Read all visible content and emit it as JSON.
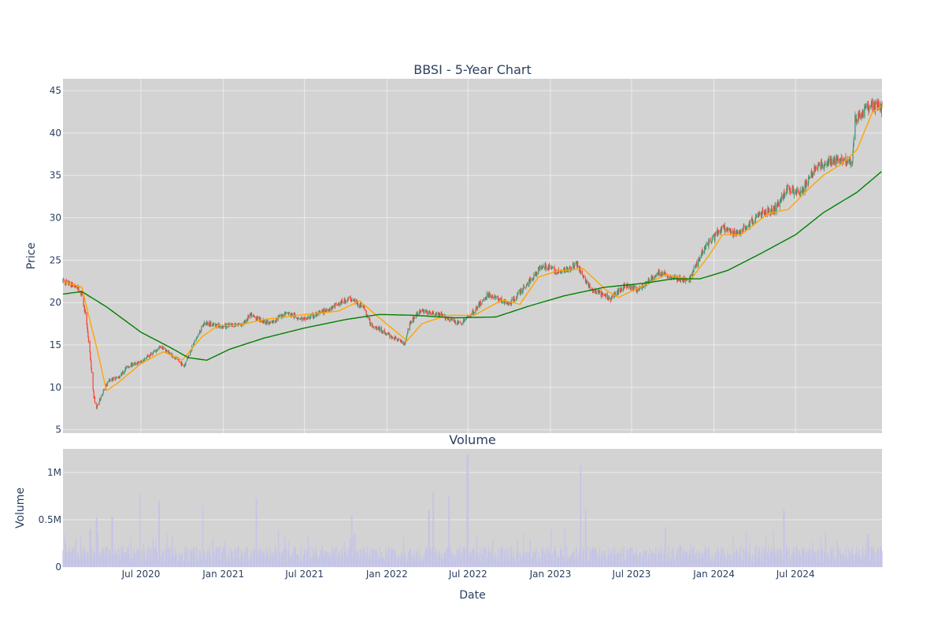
{
  "colors": {
    "plot_bg": "#d3d3d3",
    "grid": "#ebebeb",
    "up": "#3d9970",
    "down": "#ff4136",
    "ma_short": "#ffa500",
    "ma_long": "#008000",
    "volume": "#c4c4e8",
    "text": "#2a3f5f"
  },
  "chart_data": [
    {
      "type": "candlestick",
      "title": "BBSI - 5-Year Chart",
      "ylabel": "Price",
      "xlabel": "",
      "ylim": [
        4.6,
        46.4
      ],
      "yticks": [
        5,
        10,
        15,
        20,
        25,
        30,
        35,
        40,
        45
      ],
      "x_range": [
        "2020-01-09",
        "2025-01-10"
      ],
      "grid": true,
      "legend": "none",
      "series": [
        {
          "type": "candlestick",
          "anchors": [
            [
              "2020-01-09",
              22.5
            ],
            [
              "2020-02-10",
              21.8
            ],
            [
              "2020-02-20",
              21.0
            ],
            [
              "2020-03-01",
              18.0
            ],
            [
              "2020-03-10",
              13.5
            ],
            [
              "2020-03-18",
              8.8
            ],
            [
              "2020-03-24",
              7.6
            ],
            [
              "2020-04-05",
              9.2
            ],
            [
              "2020-04-20",
              10.8
            ],
            [
              "2020-05-15",
              11.3
            ],
            [
              "2020-06-01",
              12.5
            ],
            [
              "2020-07-01",
              13.0
            ],
            [
              "2020-08-15",
              14.8
            ],
            [
              "2020-09-15",
              13.5
            ],
            [
              "2020-10-05",
              12.5
            ],
            [
              "2020-10-25",
              15.0
            ],
            [
              "2020-11-20",
              17.6
            ],
            [
              "2021-01-01",
              17.2
            ],
            [
              "2021-02-15",
              17.5
            ],
            [
              "2021-03-01",
              18.5
            ],
            [
              "2021-04-15",
              17.5
            ],
            [
              "2021-05-20",
              18.8
            ],
            [
              "2021-07-01",
              18.0
            ],
            [
              "2021-08-15",
              19.0
            ],
            [
              "2021-10-10",
              20.5
            ],
            [
              "2021-11-10",
              19.5
            ],
            [
              "2021-11-25",
              17.5
            ],
            [
              "2022-01-10",
              16.0
            ],
            [
              "2022-02-10",
              15.2
            ],
            [
              "2022-02-20",
              17.5
            ],
            [
              "2022-03-15",
              19.0
            ],
            [
              "2022-05-01",
              18.5
            ],
            [
              "2022-06-15",
              17.5
            ],
            [
              "2022-07-15",
              19.0
            ],
            [
              "2022-08-15",
              21.0
            ],
            [
              "2022-10-01",
              19.8
            ],
            [
              "2022-11-15",
              22.5
            ],
            [
              "2022-12-15",
              24.5
            ],
            [
              "2023-01-20",
              23.5
            ],
            [
              "2023-03-01",
              24.5
            ],
            [
              "2023-04-01",
              21.5
            ],
            [
              "2023-05-15",
              20.5
            ],
            [
              "2023-06-15",
              22.0
            ],
            [
              "2023-07-15",
              21.5
            ],
            [
              "2023-09-01",
              23.5
            ],
            [
              "2023-10-15",
              22.8
            ],
            [
              "2023-11-05",
              22.5
            ],
            [
              "2023-12-10",
              26.5
            ],
            [
              "2024-01-20",
              28.8
            ],
            [
              "2024-02-15",
              28.0
            ],
            [
              "2024-03-15",
              29.0
            ],
            [
              "2024-04-15",
              30.5
            ],
            [
              "2024-05-15",
              31.0
            ],
            [
              "2024-06-15",
              33.5
            ],
            [
              "2024-07-15",
              33.0
            ],
            [
              "2024-08-15",
              36.0
            ],
            [
              "2024-09-15",
              36.5
            ],
            [
              "2024-10-15",
              37.0
            ],
            [
              "2024-11-05",
              36.5
            ],
            [
              "2024-11-10",
              41.5
            ],
            [
              "2024-12-10",
              43.0
            ],
            [
              "2025-01-10",
              43.2
            ]
          ]
        },
        {
          "type": "line",
          "points": [
            [
              "2020-01-09",
              22.5
            ],
            [
              "2020-02-20",
              21.8
            ],
            [
              "2020-03-25",
              14.5
            ],
            [
              "2020-04-15",
              9.6
            ],
            [
              "2020-05-10",
              10.5
            ],
            [
              "2020-07-01",
              12.8
            ],
            [
              "2020-08-20",
              14.2
            ],
            [
              "2020-10-01",
              13.2
            ],
            [
              "2020-11-15",
              16.0
            ],
            [
              "2020-12-20",
              17.3
            ],
            [
              "2021-02-01",
              17.3
            ],
            [
              "2021-04-01",
              18.0
            ],
            [
              "2021-06-15",
              18.5
            ],
            [
              "2021-09-15",
              19.0
            ],
            [
              "2021-11-01",
              20.2
            ],
            [
              "2021-12-15",
              18.2
            ],
            [
              "2022-02-15",
              15.5
            ],
            [
              "2022-03-20",
              17.5
            ],
            [
              "2022-05-15",
              18.5
            ],
            [
              "2022-07-15",
              18.5
            ],
            [
              "2022-09-15",
              20.3
            ],
            [
              "2022-10-25",
              19.8
            ],
            [
              "2022-12-05",
              23.0
            ],
            [
              "2023-01-15",
              23.7
            ],
            [
              "2023-03-15",
              24.0
            ],
            [
              "2023-05-05",
              21.5
            ],
            [
              "2023-06-01",
              20.6
            ],
            [
              "2023-07-20",
              21.8
            ],
            [
              "2023-09-15",
              23.3
            ],
            [
              "2023-11-10",
              22.7
            ],
            [
              "2023-12-20",
              25.5
            ],
            [
              "2024-01-20",
              28.0
            ],
            [
              "2024-03-01",
              28.0
            ],
            [
              "2024-05-01",
              30.5
            ],
            [
              "2024-06-15",
              31.0
            ],
            [
              "2024-08-01",
              33.5
            ],
            [
              "2024-09-01",
              35.0
            ],
            [
              "2024-10-10",
              36.3
            ],
            [
              "2024-11-15",
              38.0
            ],
            [
              "2024-12-20",
              42.5
            ],
            [
              "2025-01-10",
              43.2
            ]
          ]
        },
        {
          "type": "line",
          "points": [
            [
              "2020-01-09",
              21.0
            ],
            [
              "2020-02-20",
              21.3
            ],
            [
              "2020-04-15",
              19.5
            ],
            [
              "2020-07-01",
              16.5
            ],
            [
              "2020-09-01",
              14.8
            ],
            [
              "2020-10-15",
              13.5
            ],
            [
              "2020-11-25",
              13.2
            ],
            [
              "2021-01-15",
              14.5
            ],
            [
              "2021-04-01",
              15.8
            ],
            [
              "2021-07-01",
              17.0
            ],
            [
              "2021-10-01",
              18.0
            ],
            [
              "2021-12-15",
              18.6
            ],
            [
              "2022-03-01",
              18.5
            ],
            [
              "2022-06-01",
              18.2
            ],
            [
              "2022-09-01",
              18.3
            ],
            [
              "2022-11-15",
              19.6
            ],
            [
              "2023-02-01",
              20.8
            ],
            [
              "2023-05-01",
              21.8
            ],
            [
              "2023-08-01",
              22.3
            ],
            [
              "2023-10-01",
              22.8
            ],
            [
              "2023-12-01",
              22.8
            ],
            [
              "2024-02-01",
              23.8
            ],
            [
              "2024-04-15",
              25.8
            ],
            [
              "2024-07-01",
              28.0
            ],
            [
              "2024-09-01",
              30.6
            ],
            [
              "2024-11-15",
              33.0
            ],
            [
              "2025-01-10",
              35.5
            ]
          ]
        }
      ]
    },
    {
      "type": "bar",
      "title": "Volume",
      "xlabel": "Date",
      "ylabel": "Volume",
      "ylim": [
        0,
        1250000
      ],
      "yticks": [
        0,
        500000,
        1000000
      ],
      "ytick_labels": [
        "0",
        "0.5M",
        "1M"
      ],
      "xticks": [
        "2020-07-01",
        "2021-01-01",
        "2021-07-01",
        "2022-01-01",
        "2022-07-01",
        "2023-01-01",
        "2023-07-01",
        "2024-01-01",
        "2024-07-01"
      ],
      "xtick_labels": [
        "Jul 2020",
        "Jan 2021",
        "Jul 2021",
        "Jan 2022",
        "Jul 2022",
        "Jan 2023",
        "Jul 2023",
        "Jan 2024",
        "Jul 2024"
      ],
      "series": [
        {
          "baseline": 150000,
          "spikes": [
            [
              "2020-03-10",
              400000
            ],
            [
              "2020-03-24",
              520000
            ],
            [
              "2020-04-28",
              530000
            ],
            [
              "2020-06-28",
              780000
            ],
            [
              "2020-08-10",
              700000
            ],
            [
              "2020-11-15",
              660000
            ],
            [
              "2021-03-15",
              730000
            ],
            [
              "2021-10-15",
              540000
            ],
            [
              "2022-04-05",
              600000
            ],
            [
              "2022-04-15",
              790000
            ],
            [
              "2022-05-20",
              750000
            ],
            [
              "2022-06-30",
              1190000
            ],
            [
              "2023-03-10",
              1080000
            ],
            [
              "2023-03-20",
              610000
            ],
            [
              "2023-09-15",
              420000
            ],
            [
              "2024-06-05",
              600000
            ],
            [
              "2024-12-10",
              350000
            ]
          ]
        }
      ]
    }
  ]
}
